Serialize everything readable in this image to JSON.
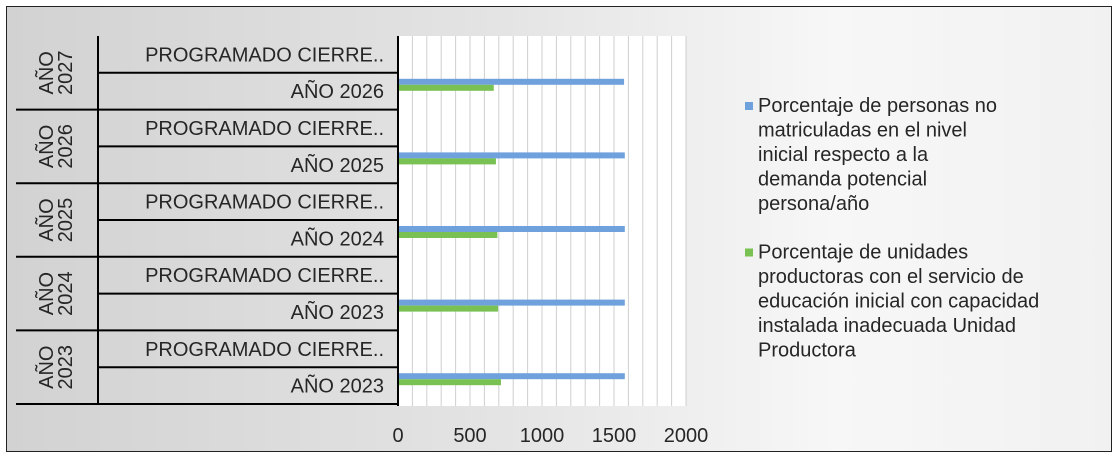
{
  "chart_data": {
    "type": "bar",
    "orientation": "horizontal",
    "groups": [
      {
        "label": "AÑO 2027",
        "categories": [
          "PROGRAMADO CIERRE..",
          "AÑO 2026"
        ]
      },
      {
        "label": "AÑO 2026",
        "categories": [
          "PROGRAMADO CIERRE..",
          "AÑO 2025"
        ]
      },
      {
        "label": "AÑO 2025",
        "categories": [
          "PROGRAMADO CIERRE..",
          "AÑO 2024"
        ]
      },
      {
        "label": "AÑO 2024",
        "categories": [
          "PROGRAMADO CIERRE..",
          "AÑO 2023"
        ]
      },
      {
        "label": "AÑO 2023",
        "categories": [
          "PROGRAMADO CIERRE..",
          "AÑO 2023"
        ]
      }
    ],
    "series": [
      {
        "name": "Porcentaje de personas no matriculadas en el nivel inicial respecto a la demanda potencial  persona/año",
        "color": "#6fa1dc",
        "values": [
          null,
          1570,
          null,
          1575,
          null,
          1575,
          null,
          1575,
          null,
          1575
        ]
      },
      {
        "name": "Porcentaje de unidades productoras con el servicio de educación inicial con capacidad instalada inadecuada  Unidad Productora",
        "color": "#78c152",
        "values": [
          null,
          665,
          null,
          680,
          null,
          690,
          null,
          695,
          null,
          715
        ]
      }
    ],
    "x_ticks": [
      "0",
      "500",
      "1000",
      "1500",
      "2000"
    ],
    "xlim": [
      0,
      2000
    ],
    "grid": true,
    "legend_position": "right",
    "background_color": "#e9e9e9"
  }
}
